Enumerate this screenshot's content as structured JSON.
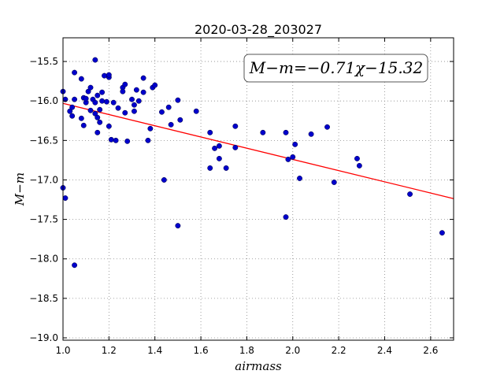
{
  "chart_data": {
    "type": "scatter",
    "title": "2020-03-28_203027",
    "xlabel": "airmass",
    "ylabel": "M−m",
    "xlim": [
      1.0,
      2.7
    ],
    "ylim": [
      -19.03,
      -15.2
    ],
    "y_inverted": true,
    "grid": true,
    "grid_style": "dotted",
    "x_ticks": [
      1.0,
      1.2,
      1.4,
      1.6,
      1.8,
      2.0,
      2.2,
      2.4,
      2.6
    ],
    "x_tick_labels": [
      "1.0",
      "1.2",
      "1.4",
      "1.6",
      "1.8",
      "2.0",
      "2.2",
      "2.4",
      "2.6"
    ],
    "y_ticks": [
      -15.5,
      -16.0,
      -16.5,
      -17.0,
      -17.5,
      -18.0,
      -18.5,
      -19.0
    ],
    "y_tick_labels": [
      "−15.5",
      "−16.0",
      "−16.5",
      "−17.0",
      "−17.5",
      "−18.0",
      "−18.5",
      "−19.0"
    ],
    "annotation": "M−m=−0.71χ−15.32",
    "fit": {
      "slope": -0.71,
      "intercept": -15.32,
      "color": "#ff0000"
    },
    "point_color": "#0000cc",
    "points": [
      {
        "x": 1.0,
        "y": -15.88
      },
      {
        "x": 1.0,
        "y": -17.1
      },
      {
        "x": 1.01,
        "y": -17.23
      },
      {
        "x": 1.01,
        "y": -15.98
      },
      {
        "x": 1.03,
        "y": -16.13
      },
      {
        "x": 1.04,
        "y": -16.19
      },
      {
        "x": 1.04,
        "y": -16.08
      },
      {
        "x": 1.05,
        "y": -15.64
      },
      {
        "x": 1.05,
        "y": -15.98
      },
      {
        "x": 1.05,
        "y": -18.08
      },
      {
        "x": 1.08,
        "y": -16.22
      },
      {
        "x": 1.08,
        "y": -15.72
      },
      {
        "x": 1.09,
        "y": -16.31
      },
      {
        "x": 1.09,
        "y": -15.96
      },
      {
        "x": 1.1,
        "y": -16.02
      },
      {
        "x": 1.1,
        "y": -15.97
      },
      {
        "x": 1.11,
        "y": -15.88
      },
      {
        "x": 1.12,
        "y": -15.83
      },
      {
        "x": 1.12,
        "y": -16.12
      },
      {
        "x": 1.13,
        "y": -15.98
      },
      {
        "x": 1.14,
        "y": -15.48
      },
      {
        "x": 1.14,
        "y": -16.02
      },
      {
        "x": 1.14,
        "y": -16.16
      },
      {
        "x": 1.15,
        "y": -16.21
      },
      {
        "x": 1.15,
        "y": -16.4
      },
      {
        "x": 1.15,
        "y": -15.93
      },
      {
        "x": 1.16,
        "y": -16.11
      },
      {
        "x": 1.16,
        "y": -16.27
      },
      {
        "x": 1.17,
        "y": -15.89
      },
      {
        "x": 1.17,
        "y": -16.0
      },
      {
        "x": 1.18,
        "y": -15.68
      },
      {
        "x": 1.19,
        "y": -16.01
      },
      {
        "x": 1.2,
        "y": -15.7
      },
      {
        "x": 1.2,
        "y": -15.67
      },
      {
        "x": 1.2,
        "y": -16.32
      },
      {
        "x": 1.21,
        "y": -16.49
      },
      {
        "x": 1.22,
        "y": -16.02
      },
      {
        "x": 1.23,
        "y": -16.5
      },
      {
        "x": 1.24,
        "y": -16.09
      },
      {
        "x": 1.26,
        "y": -15.83
      },
      {
        "x": 1.26,
        "y": -15.88
      },
      {
        "x": 1.27,
        "y": -16.15
      },
      {
        "x": 1.27,
        "y": -15.79
      },
      {
        "x": 1.28,
        "y": -16.51
      },
      {
        "x": 1.3,
        "y": -15.98
      },
      {
        "x": 1.31,
        "y": -16.05
      },
      {
        "x": 1.31,
        "y": -16.13
      },
      {
        "x": 1.32,
        "y": -15.86
      },
      {
        "x": 1.33,
        "y": -16.0
      },
      {
        "x": 1.35,
        "y": -15.89
      },
      {
        "x": 1.35,
        "y": -15.71
      },
      {
        "x": 1.37,
        "y": -16.5
      },
      {
        "x": 1.38,
        "y": -16.35
      },
      {
        "x": 1.39,
        "y": -15.83
      },
      {
        "x": 1.4,
        "y": -15.8
      },
      {
        "x": 1.43,
        "y": -16.14
      },
      {
        "x": 1.44,
        "y": -17.0
      },
      {
        "x": 1.46,
        "y": -16.08
      },
      {
        "x": 1.47,
        "y": -16.3
      },
      {
        "x": 1.5,
        "y": -15.99
      },
      {
        "x": 1.5,
        "y": -17.58
      },
      {
        "x": 1.51,
        "y": -16.24
      },
      {
        "x": 1.58,
        "y": -16.13
      },
      {
        "x": 1.64,
        "y": -16.4
      },
      {
        "x": 1.64,
        "y": -16.85
      },
      {
        "x": 1.66,
        "y": -16.6
      },
      {
        "x": 1.68,
        "y": -16.57
      },
      {
        "x": 1.68,
        "y": -16.73
      },
      {
        "x": 1.71,
        "y": -16.85
      },
      {
        "x": 1.75,
        "y": -16.32
      },
      {
        "x": 1.75,
        "y": -16.59
      },
      {
        "x": 1.87,
        "y": -16.4
      },
      {
        "x": 1.97,
        "y": -16.4
      },
      {
        "x": 1.97,
        "y": -17.47
      },
      {
        "x": 1.98,
        "y": -16.74
      },
      {
        "x": 2.0,
        "y": -16.71
      },
      {
        "x": 2.01,
        "y": -16.55
      },
      {
        "x": 2.03,
        "y": -16.98
      },
      {
        "x": 2.08,
        "y": -16.42
      },
      {
        "x": 2.15,
        "y": -16.33
      },
      {
        "x": 2.18,
        "y": -17.03
      },
      {
        "x": 2.28,
        "y": -16.73
      },
      {
        "x": 2.29,
        "y": -16.82
      },
      {
        "x": 2.51,
        "y": -17.18
      },
      {
        "x": 2.65,
        "y": -17.67
      }
    ]
  }
}
